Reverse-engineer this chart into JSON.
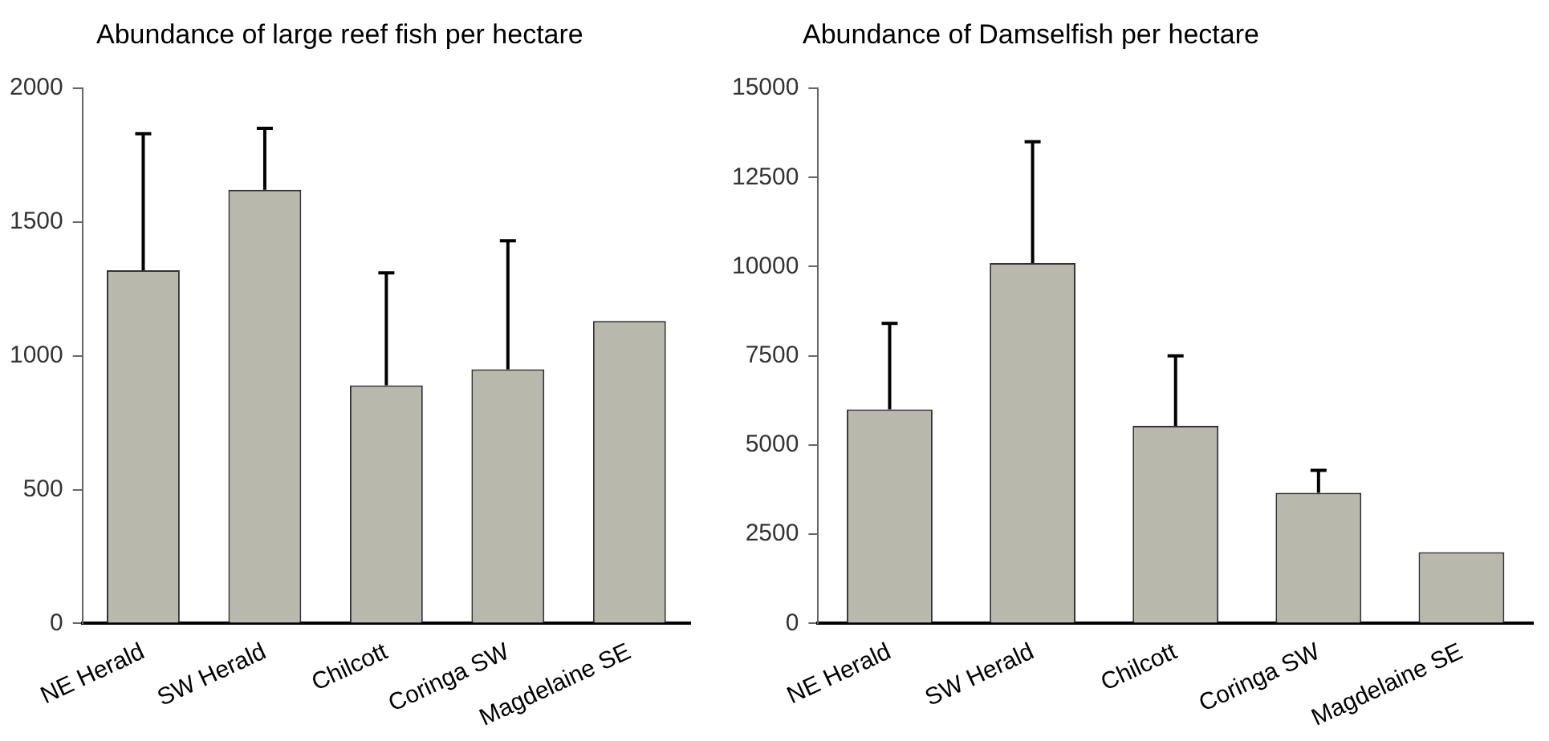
{
  "chart_data": [
    {
      "type": "bar",
      "title": "Abundance of large reef fish per hectare",
      "categories": [
        "NE Herald",
        "SW Herald",
        "Chilcott",
        "Coringa SW",
        "Magdelaine SE"
      ],
      "values": [
        1320,
        1620,
        890,
        950,
        1130
      ],
      "errors": [
        [
          1320,
          1830
        ],
        [
          1620,
          1850
        ],
        [
          890,
          1310
        ],
        [
          950,
          1430
        ],
        null
      ],
      "color": "#b8b8ac",
      "ylim": [
        0,
        2000
      ],
      "yticks": [
        0,
        500,
        1000,
        1500,
        2000
      ],
      "grid": false,
      "legend": false
    },
    {
      "type": "bar",
      "title": "Abundance of Damselfish per hectare",
      "categories": [
        "NE Herald",
        "SW Herald",
        "Chilcott",
        "Coringa SW",
        "Magdelaine SE"
      ],
      "values": [
        6000,
        10100,
        5540,
        3660,
        2000
      ],
      "errors": [
        [
          6000,
          8410
        ],
        [
          10100,
          13500
        ],
        [
          5540,
          7500
        ],
        [
          3660,
          4290
        ],
        null
      ],
      "color": "#b8b8ac",
      "ylim": [
        0,
        15000
      ],
      "yticks": [
        0,
        2500,
        5000,
        7500,
        10000,
        12500,
        15000
      ],
      "grid": false,
      "legend": false
    }
  ]
}
